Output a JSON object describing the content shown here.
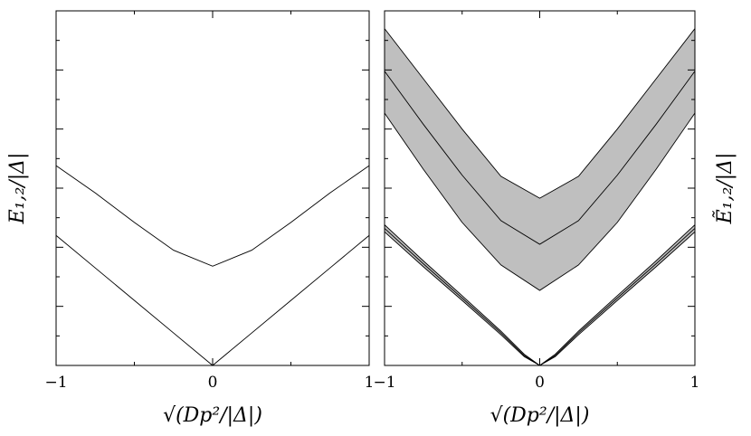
{
  "chart_data": [
    {
      "type": "line",
      "panel": "left",
      "xlabel": "√(Dp²/|Δ|)",
      "ylabel": "E₁,₂/|Δ|",
      "xlim": [
        -1,
        1
      ],
      "ylim": [
        0,
        6
      ],
      "xticks": [
        "-1",
        "0",
        "1"
      ],
      "yticks": [
        "0",
        "1",
        "2",
        "3",
        "4",
        "5",
        "6"
      ],
      "y_axis_side": "left",
      "grid": false,
      "series": [
        {
          "x": [
            -1.0,
            -0.75,
            -0.5,
            -0.25,
            0.0,
            0.25,
            0.5,
            0.75,
            1.0
          ],
          "y": [
            3.38,
            2.92,
            2.42,
            1.95,
            1.68,
            1.95,
            2.42,
            2.92,
            3.38
          ]
        },
        {
          "x": [
            -1.0,
            -0.75,
            -0.5,
            -0.25,
            0.0,
            0.25,
            0.5,
            0.75,
            1.0
          ],
          "y": [
            2.2,
            1.65,
            1.1,
            0.55,
            0.0,
            0.55,
            1.1,
            1.65,
            2.2
          ]
        }
      ]
    },
    {
      "type": "area",
      "panel": "right",
      "xlabel": "√(Dp²/|Δ|)",
      "ylabel": "Ẽ₁,₂/|Δ|",
      "xlim": [
        -1,
        1
      ],
      "ylim": [
        0,
        6
      ],
      "xticks": [
        "-1",
        "0",
        "1"
      ],
      "yticks": [
        "0",
        "1",
        "2",
        "3",
        "4",
        "5",
        "6"
      ],
      "y_axis_side": "right",
      "grid": false,
      "band_color": "#bfbfbf",
      "series": [
        {
          "x": [
            -1.0,
            -0.75,
            -0.5,
            -0.25,
            0.0,
            0.25,
            0.5,
            0.75,
            1.0
          ],
          "y": [
            4.98,
            4.08,
            3.22,
            2.45,
            2.05,
            2.45,
            3.22,
            4.08,
            4.98
          ],
          "upper": [
            5.7,
            4.85,
            4.0,
            3.2,
            2.83,
            3.2,
            4.0,
            4.85,
            5.7
          ],
          "lower": [
            4.27,
            3.32,
            2.42,
            1.7,
            1.27,
            1.7,
            2.42,
            3.32,
            4.27
          ]
        },
        {
          "x": [
            -1.0,
            -0.75,
            -0.5,
            -0.25,
            -0.1,
            0.0,
            0.1,
            0.25,
            0.5,
            0.75,
            1.0
          ],
          "y": [
            2.32,
            1.72,
            1.14,
            0.55,
            0.17,
            0.0,
            0.17,
            0.55,
            1.14,
            1.72,
            2.32
          ],
          "upper": [
            2.38,
            1.77,
            1.18,
            0.58,
            0.19,
            0.0,
            0.19,
            0.58,
            1.18,
            1.77,
            2.38
          ],
          "lower": [
            2.26,
            1.67,
            1.1,
            0.52,
            0.15,
            0.0,
            0.15,
            0.52,
            1.1,
            1.67,
            2.26
          ]
        }
      ]
    }
  ]
}
